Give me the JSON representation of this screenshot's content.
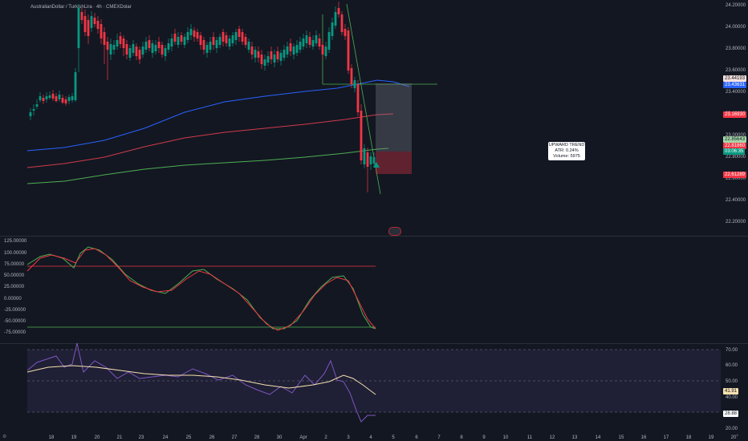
{
  "header": {
    "symbol_title": "AustralianDollar / TurkishLira · 4h · CMEXDolar"
  },
  "main_pane": {
    "price_labels": [
      "24.20000",
      "24.00000",
      "23.80000",
      "23.60000",
      "23.40000",
      "23.20000",
      "23.00000",
      "22.80000",
      "22.60000",
      "22.40000",
      "22.20000"
    ],
    "tags": [
      {
        "text": "23.44193",
        "color": "#f5e0dc",
        "text_color": "#131722"
      },
      {
        "text": "23.43631",
        "color": "#2962ff",
        "text_color": "#ffffff"
      },
      {
        "text": "23.16930",
        "color": "#f23645",
        "text_color": "#ffffff"
      },
      {
        "text": "22.85643",
        "color": "#a5d6a7",
        "text_color": "#131722"
      },
      {
        "text": "22.81860",
        "color": "#f23645",
        "text_color": "#ffffff"
      },
      {
        "text": "03:06:35",
        "color": "#089981",
        "text_color": "#ffffff"
      },
      {
        "text": "22.61289",
        "color": "#f23645",
        "text_color": "#ffffff"
      }
    ],
    "tooltip": {
      "line1": "UPWARD TREND",
      "line2": "ATR: 0.24%",
      "line3": "Volume: 5975"
    }
  },
  "osc_pane": {
    "price_labels": [
      "125.00000",
      "100.00000",
      "75.00000",
      "50.00000",
      "25.00000",
      "0.00000",
      "-25.00000",
      "-50.00000",
      "-75.00000"
    ]
  },
  "rsi_pane": {
    "price_labels": [
      "70.00",
      "60.00",
      "50.00",
      "40.00",
      "30.00",
      "20.00"
    ],
    "tags": [
      {
        "text": "41.91",
        "color": "#f5e0b0",
        "text_color": "#131722"
      },
      {
        "text": "28.88",
        "color": "#ffffff",
        "text_color": "#131722"
      }
    ]
  },
  "time_axis": {
    "labels": [
      "18",
      "19",
      "20",
      "21",
      "23",
      "24",
      "25",
      "26",
      "27",
      "28",
      "30",
      "Apr",
      "2",
      "3",
      "4",
      "5",
      "6",
      "7",
      "8",
      "9",
      "10",
      "11",
      "12",
      "13",
      "14",
      "15",
      "16",
      "17",
      "18",
      "19",
      "20",
      "22",
      "23",
      "24",
      "25",
      "26",
      "27"
    ]
  },
  "colors": {
    "background": "#131722",
    "up": "#089981",
    "down": "#f23645",
    "ema_blue": "#2962ff",
    "ema_red": "#d03b4b",
    "ema_green": "#4caf50",
    "rsi": "#7e57c2",
    "rsi_ma": "#f5e0b0"
  },
  "icons": {
    "settings": "gear-icon",
    "zoom_out": "minus-icon",
    "zoom_in": "plus-icon"
  }
}
